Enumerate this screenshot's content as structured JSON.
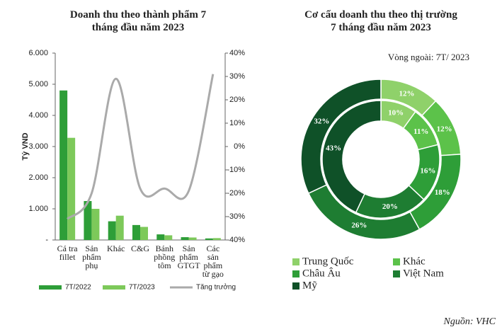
{
  "chart_data": [
    {
      "type": "bar",
      "title": "Doanh thu theo thành phẩm 7\ntháng đầu năm 2023",
      "y_label": "Tỷ VND",
      "categories": [
        "Cá tra\nfillet",
        "Sản\nphẩm\nphụ",
        "Khác",
        "C&G",
        "Bánh\nphồng\ntôm",
        "Sản\nphẩm\nGTGT",
        "Các\nsản\nphẩm\ntừ gạo"
      ],
      "series": [
        {
          "name": "7T/2022",
          "color": "#2e9e38",
          "values": [
            4800,
            1250,
            600,
            480,
            180,
            90,
            50
          ]
        },
        {
          "name": "7T/2023",
          "color": "#7dc95a",
          "values": [
            3280,
            1000,
            780,
            420,
            150,
            80,
            60
          ]
        },
        {
          "name": "Tăng trưởng",
          "color": "#aaaaaa",
          "type": "line",
          "axis": "y2",
          "values": [
            -31,
            -20,
            29,
            -18,
            -18,
            -19,
            31
          ]
        }
      ],
      "ylim": [
        0,
        6000
      ],
      "yticks": [
        {
          "value": 0,
          "label": "-"
        },
        {
          "value": 1000,
          "label": "1.000"
        },
        {
          "value": 2000,
          "label": "2.000"
        },
        {
          "value": 3000,
          "label": "3.000"
        },
        {
          "value": 4000,
          "label": "4.000"
        },
        {
          "value": 5000,
          "label": "5.000"
        },
        {
          "value": 6000,
          "label": "6.000"
        }
      ],
      "y2lim": [
        -40,
        40
      ],
      "y2ticks": [
        {
          "value": -40,
          "label": "-40%"
        },
        {
          "value": -30,
          "label": "-30%"
        },
        {
          "value": -20,
          "label": "-20%"
        },
        {
          "value": -10,
          "label": "-10%"
        },
        {
          "value": 0,
          "label": "0%"
        },
        {
          "value": 10,
          "label": "10%"
        },
        {
          "value": 20,
          "label": "20%"
        },
        {
          "value": 30,
          "label": "30%"
        },
        {
          "value": 40,
          "label": "40%"
        }
      ],
      "legend": "bottom"
    },
    {
      "type": "donut",
      "title": "Cơ cấu doanh thu theo thị trường\n7 tháng đầu năm 2023",
      "subtitle": "Vòng ngoài: 7T/ 2023",
      "categories": [
        "Trung Quốc",
        "Khác",
        "Châu Âu",
        "Việt Nam",
        "Mỹ"
      ],
      "colors": [
        "#8fd16a",
        "#5cc24a",
        "#2e9e38",
        "#1e7d32",
        "#0f5128"
      ],
      "series": [
        {
          "values": [
            12,
            12,
            18,
            26,
            32
          ],
          "value_labels": [
            "12%",
            "12%",
            "18%",
            "26%",
            "32%"
          ]
        },
        {
          "values": [
            10,
            11,
            16,
            20,
            43
          ],
          "value_labels": [
            "10%",
            "11%",
            "16%",
            "20%",
            "43%"
          ]
        }
      ]
    }
  ],
  "source": "Nguồn: VHC"
}
